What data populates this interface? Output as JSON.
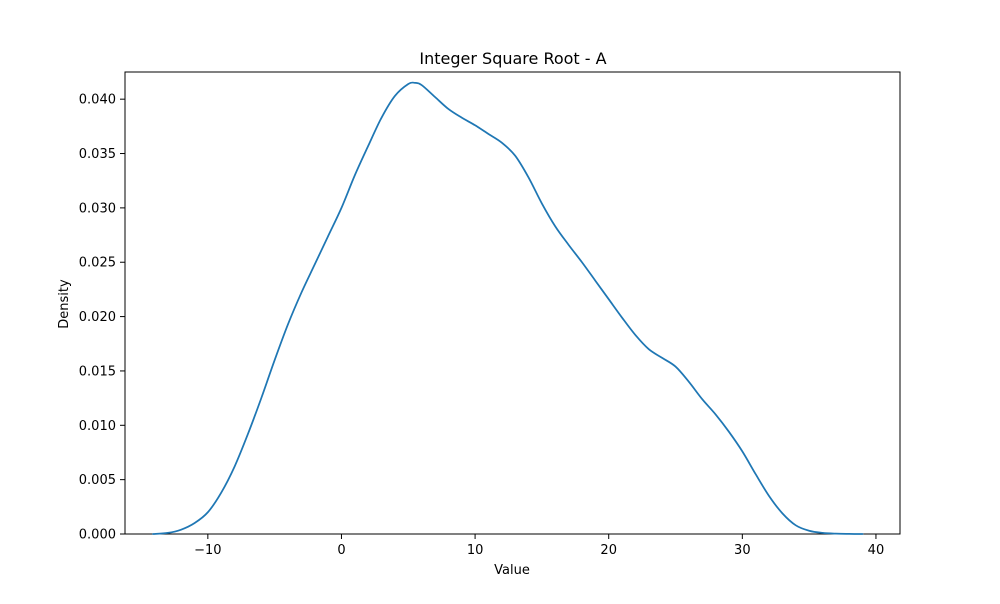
{
  "chart_data": {
    "type": "line",
    "title": "Integer Square Root - A",
    "xlabel": "Value",
    "ylabel": "Density",
    "xlim": [
      -16.2,
      41.8
    ],
    "ylim": [
      0,
      0.0425
    ],
    "x_ticks": [
      -10,
      0,
      10,
      20,
      30,
      40
    ],
    "y_ticks": [
      0.0,
      0.005,
      0.01,
      0.015,
      0.02,
      0.025,
      0.03,
      0.035,
      0.04
    ],
    "x_tick_labels": [
      "−10",
      "0",
      "10",
      "20",
      "30",
      "40"
    ],
    "y_tick_labels": [
      "0.000",
      "0.005",
      "0.010",
      "0.015",
      "0.020",
      "0.025",
      "0.030",
      "0.035",
      "0.040"
    ],
    "grid": false,
    "series": [
      {
        "color": "#1f77b4",
        "x": [
          -14.1,
          -13.0,
          -12.0,
          -11.0,
          -10.0,
          -9.0,
          -8.0,
          -7.0,
          -6.0,
          -5.0,
          -4.0,
          -3.0,
          -2.0,
          -1.0,
          0.0,
          1.0,
          2.0,
          3.0,
          4.0,
          5.0,
          5.5,
          6.0,
          7.0,
          8.0,
          9.0,
          10.0,
          11.0,
          12.0,
          13.0,
          14.0,
          15.0,
          16.0,
          17.0,
          18.0,
          19.0,
          20.0,
          21.0,
          22.0,
          23.0,
          24.0,
          25.0,
          26.0,
          27.0,
          28.0,
          29.0,
          30.0,
          31.0,
          32.0,
          33.0,
          34.0,
          35.0,
          36.0,
          37.0,
          38.0,
          39.0
        ],
        "y": [
          0.0,
          0.0001,
          0.0004,
          0.001,
          0.002,
          0.0038,
          0.0062,
          0.0092,
          0.0125,
          0.016,
          0.0193,
          0.0222,
          0.0248,
          0.0274,
          0.03,
          0.033,
          0.0357,
          0.0383,
          0.0403,
          0.0414,
          0.0415,
          0.0413,
          0.0402,
          0.0391,
          0.0383,
          0.0376,
          0.0368,
          0.036,
          0.0348,
          0.0328,
          0.0304,
          0.0283,
          0.0266,
          0.025,
          0.0233,
          0.0216,
          0.0199,
          0.0183,
          0.017,
          0.0162,
          0.0154,
          0.014,
          0.0124,
          0.011,
          0.0094,
          0.0076,
          0.0055,
          0.0035,
          0.0019,
          0.0008,
          0.0003,
          0.0001,
          3e-05,
          1e-05,
          0.0
        ]
      }
    ]
  }
}
